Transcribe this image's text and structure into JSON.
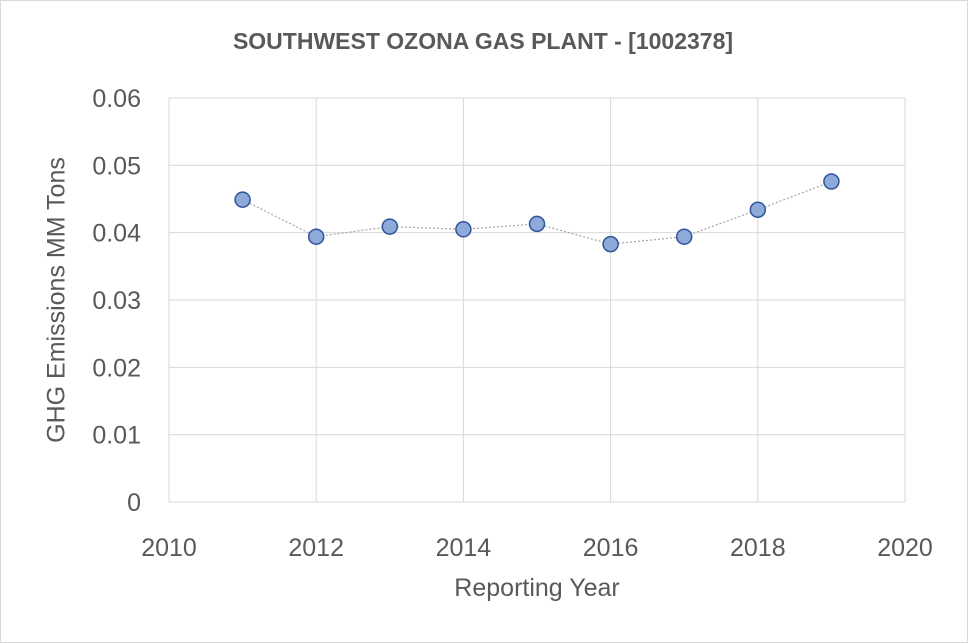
{
  "chart_data": {
    "type": "scatter",
    "title": "SOUTHWEST OZONA GAS PLANT - [1002378]",
    "xlabel": "Reporting Year",
    "ylabel": "GHG Emissions MM Tons",
    "xlim": [
      2010,
      2020
    ],
    "ylim": [
      0,
      0.06
    ],
    "xticks": [
      "2010",
      "2012",
      "2014",
      "2016",
      "2018",
      "2020"
    ],
    "yticks": [
      "0",
      "0.01",
      "0.02",
      "0.03",
      "0.04",
      "0.05",
      "0.06"
    ],
    "grid": true,
    "legend": "none",
    "series": [
      {
        "x": [
          2011,
          2012,
          2013,
          2014,
          2015,
          2016,
          2017,
          2018,
          2019
        ],
        "y": [
          0.0449,
          0.0394,
          0.0409,
          0.0405,
          0.0413,
          0.0383,
          0.0394,
          0.0434,
          0.0476
        ],
        "marker_color": "#8eaadb",
        "marker_edge": "#2f5597",
        "line_style": "dotted"
      }
    ]
  }
}
